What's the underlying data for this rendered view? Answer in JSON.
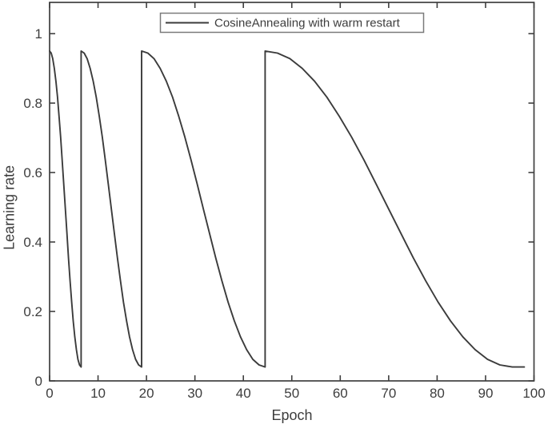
{
  "figure": {
    "background": "#ffffff"
  },
  "chart_data": {
    "type": "line",
    "title": "",
    "xlabel": "Epoch",
    "ylabel": "Learning rate",
    "xlim": [
      0,
      100
    ],
    "ylim": [
      0,
      1.09
    ],
    "grid": false,
    "axis_color": "#3f3f3f",
    "text_color": "#3d3d3d",
    "tick_direction": "in",
    "x_ticks": {
      "values": [
        0,
        10,
        20,
        30,
        40,
        50,
        60,
        70,
        80,
        90,
        100
      ],
      "labels": [
        "0",
        "10",
        "20",
        "30",
        "40",
        "50",
        "60",
        "70",
        "80",
        "90",
        "100"
      ]
    },
    "y_ticks": {
      "values": [
        0,
        0.2,
        0.4,
        0.6,
        0.8,
        1
      ],
      "labels": [
        "0",
        "0.2",
        "0.4",
        "0.6",
        "0.8",
        "1"
      ]
    },
    "legend": {
      "position": "north-inside",
      "border_color": "#7a7a7a",
      "entries": [
        {
          "label": "CosineAnnealing with warm restart",
          "color": "#3b3b3b"
        }
      ]
    },
    "schedule": {
      "name": "cosine annealing with warm restarts",
      "lr_max": 0.95,
      "lr_min": 0.04,
      "restart_epochs": [
        6.5,
        19,
        44.5
      ],
      "last_epoch": 98
    },
    "series": [
      {
        "name": "CosineAnnealing with warm restart",
        "color": "#3b3b3b",
        "points": [
          [
            0,
            0.95
          ],
          [
            0.33,
            0.944
          ],
          [
            0.65,
            0.928
          ],
          [
            0.98,
            0.9
          ],
          [
            1.3,
            0.863
          ],
          [
            1.63,
            0.817
          ],
          [
            1.95,
            0.762
          ],
          [
            2.28,
            0.702
          ],
          [
            2.6,
            0.636
          ],
          [
            2.93,
            0.566
          ],
          [
            3.25,
            0.495
          ],
          [
            3.58,
            0.424
          ],
          [
            3.9,
            0.354
          ],
          [
            4.23,
            0.288
          ],
          [
            4.55,
            0.227
          ],
          [
            4.88,
            0.173
          ],
          [
            5.2,
            0.127
          ],
          [
            5.53,
            0.09
          ],
          [
            5.85,
            0.062
          ],
          [
            6.18,
            0.046
          ],
          [
            6.5,
            0.04
          ],
          [
            6.5,
            0.95
          ],
          [
            7.13,
            0.944
          ],
          [
            7.75,
            0.928
          ],
          [
            8.38,
            0.9
          ],
          [
            9,
            0.863
          ],
          [
            9.63,
            0.817
          ],
          [
            10.25,
            0.762
          ],
          [
            10.88,
            0.702
          ],
          [
            11.5,
            0.636
          ],
          [
            12.13,
            0.566
          ],
          [
            12.75,
            0.495
          ],
          [
            13.38,
            0.424
          ],
          [
            14,
            0.354
          ],
          [
            14.63,
            0.288
          ],
          [
            15.25,
            0.227
          ],
          [
            15.88,
            0.173
          ],
          [
            16.5,
            0.127
          ],
          [
            17.13,
            0.09
          ],
          [
            17.75,
            0.062
          ],
          [
            18.38,
            0.046
          ],
          [
            19,
            0.04
          ],
          [
            19,
            0.95
          ],
          [
            20.28,
            0.944
          ],
          [
            21.55,
            0.928
          ],
          [
            22.83,
            0.9
          ],
          [
            24.1,
            0.863
          ],
          [
            25.38,
            0.817
          ],
          [
            26.65,
            0.762
          ],
          [
            27.93,
            0.702
          ],
          [
            29.2,
            0.636
          ],
          [
            30.48,
            0.566
          ],
          [
            31.75,
            0.495
          ],
          [
            33.03,
            0.424
          ],
          [
            34.3,
            0.354
          ],
          [
            35.58,
            0.288
          ],
          [
            36.85,
            0.227
          ],
          [
            38.13,
            0.173
          ],
          [
            39.4,
            0.127
          ],
          [
            40.68,
            0.09
          ],
          [
            41.95,
            0.062
          ],
          [
            43.23,
            0.046
          ],
          [
            44.5,
            0.04
          ],
          [
            44.5,
            0.95
          ],
          [
            47.05,
            0.944
          ],
          [
            49.6,
            0.928
          ],
          [
            52.15,
            0.9
          ],
          [
            54.7,
            0.863
          ],
          [
            57.25,
            0.817
          ],
          [
            59.8,
            0.762
          ],
          [
            62.35,
            0.702
          ],
          [
            64.9,
            0.636
          ],
          [
            67.45,
            0.566
          ],
          [
            70,
            0.495
          ],
          [
            72.55,
            0.424
          ],
          [
            75.1,
            0.354
          ],
          [
            77.65,
            0.288
          ],
          [
            80.2,
            0.227
          ],
          [
            82.75,
            0.173
          ],
          [
            85.3,
            0.127
          ],
          [
            87.85,
            0.09
          ],
          [
            90.4,
            0.062
          ],
          [
            92.95,
            0.046
          ],
          [
            95.5,
            0.04
          ],
          [
            98,
            0.04
          ]
        ]
      }
    ]
  }
}
